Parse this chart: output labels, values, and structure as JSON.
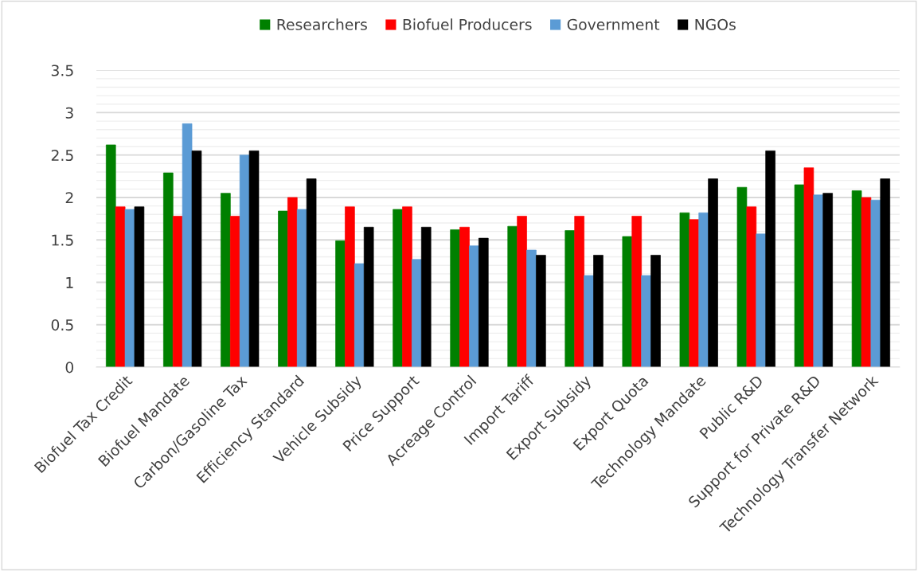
{
  "chart_data": {
    "type": "bar",
    "categories": [
      "Biofuel Tax Credit",
      "Biofuel Mandate",
      "Carbon/Gasoline Tax",
      "Efficiency Standard",
      "Vehicle Subsidy",
      "Price Support",
      "Acreage Control",
      "Import Tariff",
      "Export Subsidy",
      "Export Quota",
      "Technology Mandate",
      "Public R&D",
      "Support for Private R&D",
      "Technology Transfer Network"
    ],
    "series": [
      {
        "name": "Researchers",
        "color": "#008000",
        "values": [
          2.62,
          2.29,
          2.05,
          1.84,
          1.49,
          1.86,
          1.62,
          1.66,
          1.61,
          1.54,
          1.82,
          2.12,
          2.15,
          2.08
        ]
      },
      {
        "name": "Biofuel Producers",
        "color": "#ff0000",
        "values": [
          1.89,
          1.78,
          1.78,
          2.0,
          1.89,
          1.89,
          1.65,
          1.78,
          1.78,
          1.78,
          1.74,
          1.89,
          2.35,
          2.0
        ]
      },
      {
        "name": "Government",
        "color": "#5b9bd5",
        "values": [
          1.86,
          2.87,
          2.5,
          1.86,
          1.22,
          1.27,
          1.43,
          1.38,
          1.08,
          1.08,
          1.82,
          1.57,
          2.03,
          1.97
        ]
      },
      {
        "name": "NGOs",
        "color": "#000000",
        "values": [
          1.89,
          2.55,
          2.55,
          2.22,
          1.65,
          1.65,
          1.52,
          1.32,
          1.32,
          1.32,
          2.22,
          2.55,
          2.05,
          2.22
        ]
      }
    ],
    "ylim": [
      0,
      3.5
    ],
    "yticks": [
      0,
      {
        "value": 0.1,
        "label": null
      },
      {
        "value": 0.2,
        "label": null
      },
      {
        "value": 0.3,
        "label": null
      },
      {
        "value": 0.4,
        "label": null
      },
      0.5,
      {
        "value": 0.6,
        "label": null
      },
      {
        "value": 0.7,
        "label": null
      },
      {
        "value": 0.8,
        "label": null
      },
      {
        "value": 0.9,
        "label": null
      },
      1,
      {
        "value": 1.1,
        "label": null
      },
      {
        "value": 1.2,
        "label": null
      },
      {
        "value": 1.3,
        "label": null
      },
      {
        "value": 1.4,
        "label": null
      },
      1.5,
      {
        "value": 1.6,
        "label": null
      },
      {
        "value": 1.7,
        "label": null
      },
      {
        "value": 1.8,
        "label": null
      },
      {
        "value": 1.9,
        "label": null
      },
      2,
      {
        "value": 2.1,
        "label": null
      },
      {
        "value": 2.2,
        "label": null
      },
      {
        "value": 2.3,
        "label": null
      },
      {
        "value": 2.4,
        "label": null
      },
      2.5,
      {
        "value": 2.6,
        "label": null
      },
      {
        "value": 2.7,
        "label": null
      },
      {
        "value": 2.8,
        "label": null
      },
      {
        "value": 2.9,
        "label": null
      },
      3,
      {
        "value": 3.1,
        "label": null
      },
      {
        "value": 3.2,
        "label": null
      },
      {
        "value": 3.3,
        "label": null
      },
      {
        "value": 3.4,
        "label": null
      },
      3.5
    ],
    "grid": "y",
    "legend": "top"
  }
}
